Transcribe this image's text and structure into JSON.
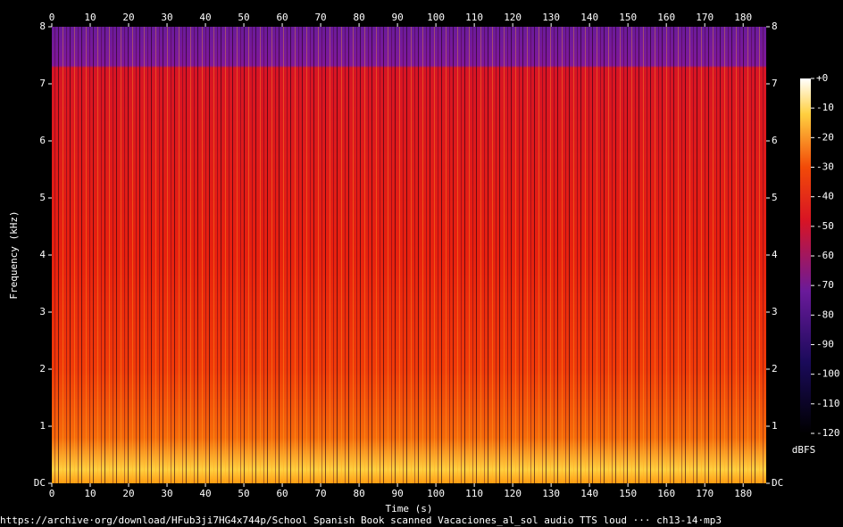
{
  "chart_data": {
    "type": "spectrogram",
    "xlabel": "Time (s)",
    "ylabel": "Frequency (kHz)",
    "xlim": [
      0,
      186
    ],
    "xticks": [
      0,
      10,
      20,
      30,
      40,
      50,
      60,
      70,
      80,
      90,
      100,
      110,
      120,
      130,
      140,
      150,
      160,
      170,
      180
    ],
    "ylim": [
      0,
      8
    ],
    "yticks": [
      {
        "value": 0,
        "label": "DC"
      },
      1,
      2,
      3,
      4,
      5,
      6,
      7,
      8
    ],
    "colorbar_label": "dBFS",
    "clim": [
      -120,
      0
    ],
    "cticks": [
      {
        "value": 0,
        "label": "+0"
      },
      -10,
      -20,
      -30,
      -40,
      -50,
      -60,
      -70,
      -80,
      -90,
      -100,
      -110,
      -120
    ],
    "footer": "https://archive·org/download/HFub3ji7HG4x744p/School Spanish Book scanned Vacaciones_al_sol audio TTS loud ··· ch13-14·mp3"
  }
}
